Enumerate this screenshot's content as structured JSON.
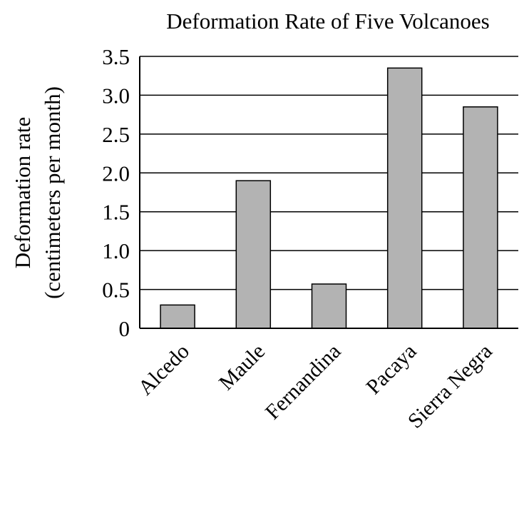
{
  "chart_data": {
    "type": "bar",
    "title": "Deformation Rate of Five Volcanoes",
    "ylabel_lines": [
      "Deformation rate",
      "(centimeters per month)"
    ],
    "xlabel": "",
    "categories": [
      "Alcedo",
      "Maule",
      "Fernandina",
      "Pacaya",
      "Sierra Negra"
    ],
    "values": [
      0.3,
      1.9,
      0.57,
      3.35,
      2.85
    ],
    "ylim": [
      0,
      3.5
    ],
    "yticks": [
      0,
      0.5,
      1.0,
      1.5,
      2.0,
      2.5,
      3.0,
      3.5
    ],
    "ytick_labels": [
      "0",
      "0.5",
      "1.0",
      "1.5",
      "2.0",
      "2.5",
      "3.0",
      "3.5"
    ],
    "grid": true,
    "bar_color": "#b3b3b3",
    "category_label_rotation_deg": -45
  }
}
